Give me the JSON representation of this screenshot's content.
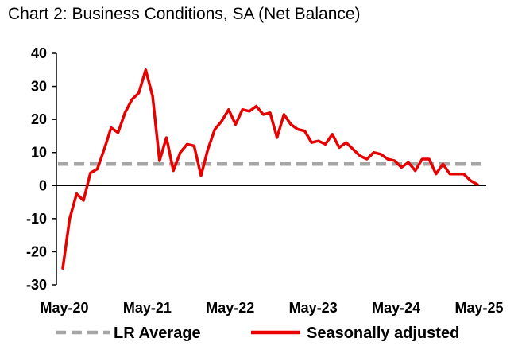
{
  "chart_data": {
    "type": "line",
    "title": "Chart 2: Business Conditions, SA (Net Balance)",
    "xlabel": "",
    "ylabel": "",
    "ylim": [
      -30,
      40
    ],
    "yticks": [
      "40",
      "30",
      "20",
      "10",
      "0",
      "-10",
      "-20",
      "-30"
    ],
    "xticks": [
      "May-20",
      "May-21",
      "May-22",
      "May-23",
      "May-24",
      "May-25"
    ],
    "x_start": "May-20",
    "x_end": "May-25",
    "grid": false,
    "legend_position": "bottom",
    "series": [
      {
        "name": "LR Average",
        "style": "dashed",
        "color": "#a6a6a6",
        "values": [
          6.5
        ]
      },
      {
        "name": "Seasonally adjusted",
        "style": "solid",
        "color": "#e60000",
        "values": [
          -25,
          -10,
          -2.5,
          -4.5,
          3.8,
          5,
          11,
          17.5,
          16,
          22,
          26,
          28,
          35,
          27,
          7.5,
          14.5,
          4.5,
          10,
          12.5,
          12,
          3,
          11,
          17,
          19.5,
          23,
          18.5,
          23,
          22.5,
          24,
          21.5,
          22,
          14.5,
          21.5,
          18.5,
          17,
          16.5,
          13,
          13.5,
          12.5,
          15.5,
          11.5,
          13,
          11,
          9,
          8,
          10,
          9.5,
          8,
          7.5,
          5.5,
          7,
          4.5,
          8,
          8,
          3.5,
          6.5,
          3.5,
          3.5,
          3.5,
          1.5,
          0.3
        ]
      }
    ]
  }
}
